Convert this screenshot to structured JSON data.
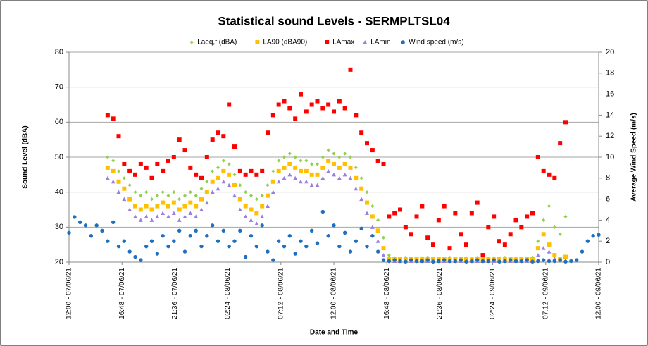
{
  "chart_data": {
    "type": "scatter",
    "title": "Statistical sound Levels - SERMPLTSL04",
    "x_label": "Date and Time",
    "y_label": "Sound Level (dBA)",
    "y2_label": "Average Wind Speed (m/s)",
    "xlim": [
      0,
      48
    ],
    "xticks": [
      {
        "value": 0,
        "label": "12:00 - 07/06/21"
      },
      {
        "value": 4.8,
        "label": "16:48 - 07/06/21"
      },
      {
        "value": 9.6,
        "label": "21:36 - 07/06/21"
      },
      {
        "value": 14.4,
        "label": "02:24 - 08/06/21"
      },
      {
        "value": 19.2,
        "label": "07:12 - 08/06/21"
      },
      {
        "value": 24,
        "label": "12:00 - 08/06/21"
      },
      {
        "value": 28.8,
        "label": "16:48 - 08/06/21"
      },
      {
        "value": 33.6,
        "label": "21:36 - 08/06/21"
      },
      {
        "value": 38.4,
        "label": "02:24 - 09/06/21"
      },
      {
        "value": 43.2,
        "label": "07:12 - 09/06/21"
      },
      {
        "value": 48,
        "label": "12:00 - 09/06/21"
      }
    ],
    "ylim": [
      20,
      80
    ],
    "yticks": [
      20,
      30,
      40,
      50,
      60,
      70,
      80
    ],
    "y2lim": [
      0,
      20
    ],
    "y2ticks": [
      0,
      2,
      4,
      6,
      8,
      10,
      12,
      14,
      16,
      18,
      20
    ],
    "grid": true,
    "legend": "top",
    "x": [
      0,
      0.5,
      1,
      1.5,
      2,
      2.5,
      3,
      3.5,
      4,
      4.5,
      5,
      5.5,
      6,
      6.5,
      7,
      7.5,
      8,
      8.5,
      9,
      9.5,
      10,
      10.5,
      11,
      11.5,
      12,
      12.5,
      13,
      13.5,
      14,
      14.5,
      15,
      15.5,
      16,
      16.5,
      17,
      17.5,
      18,
      18.5,
      19,
      19.5,
      20,
      20.5,
      21,
      21.5,
      22,
      22.5,
      23,
      23.5,
      24,
      24.5,
      25,
      25.5,
      26,
      26.5,
      27,
      27.5,
      28,
      28.5,
      29,
      29.5,
      30,
      30.5,
      31,
      31.5,
      32,
      32.5,
      33,
      33.5,
      34,
      34.5,
      35,
      35.5,
      36,
      36.5,
      37,
      37.5,
      38,
      38.5,
      39,
      39.5,
      40,
      40.5,
      41,
      41.5,
      42,
      42.5,
      43,
      43.5,
      44,
      44.5,
      45,
      45.5,
      46,
      46.5,
      47,
      47.5,
      48
    ],
    "series": [
      {
        "name": "Laeq,f (dBA)",
        "color": "#92d050",
        "marker": "diamond",
        "values": [
          null,
          null,
          null,
          null,
          null,
          null,
          null,
          50,
          49,
          46,
          44,
          42,
          40,
          39,
          40,
          38,
          39,
          40,
          39,
          40,
          38,
          39,
          40,
          39,
          41,
          43,
          46,
          47,
          49,
          48,
          45,
          42,
          40,
          39,
          38,
          39,
          42,
          46,
          49,
          50,
          51,
          50,
          49,
          49,
          48,
          48,
          50,
          52,
          51,
          50,
          51,
          50,
          47,
          44,
          40,
          36,
          32,
          27,
          22,
          21.2,
          21,
          21.3,
          21.1,
          21,
          21.2,
          21.4,
          21.1,
          21,
          21.2,
          21.3,
          21,
          21.1,
          21.2,
          21,
          21.3,
          21.1,
          21,
          21.2,
          21.1,
          21.3,
          21,
          21.2,
          21.1,
          21,
          21.4,
          26,
          32,
          36,
          30,
          28,
          33,
          null,
          null,
          null,
          null,
          null,
          null
        ]
      },
      {
        "name": "LA90  (dBA90)",
        "color": "#ffc000",
        "marker": "square",
        "values": [
          null,
          null,
          null,
          null,
          null,
          null,
          null,
          47,
          46,
          43,
          41,
          38,
          36,
          35,
          36,
          35,
          36,
          37,
          36,
          37,
          35,
          36,
          37,
          36,
          38,
          40,
          43,
          44,
          46,
          45,
          42,
          38,
          36,
          35,
          34,
          36,
          39,
          43,
          46,
          47,
          48,
          47,
          46,
          46,
          45,
          45,
          47,
          49,
          48,
          47,
          48,
          47,
          44,
          41,
          37,
          33,
          29,
          24,
          21,
          20.8,
          20.9,
          20.7,
          20.8,
          20.9,
          20.8,
          20.7,
          20.8,
          20.9,
          20.8,
          20.7,
          20.8,
          20.9,
          20.8,
          20.7,
          20.8,
          20.9,
          20.8,
          20.7,
          20.8,
          20.9,
          20.8,
          20.7,
          20.8,
          20.9,
          20.8,
          24,
          28,
          25,
          22,
          21,
          21.5,
          null,
          null,
          null,
          null,
          null,
          null
        ]
      },
      {
        "name": "LAmax",
        "color": "#ff0000",
        "marker": "square",
        "values": [
          null,
          null,
          null,
          null,
          null,
          null,
          null,
          62,
          61,
          56,
          48,
          46,
          45,
          48,
          47,
          44,
          48,
          46,
          49,
          50,
          55,
          52,
          47,
          45,
          44,
          50,
          55,
          57,
          56,
          65,
          53,
          46,
          45,
          46,
          45,
          46,
          57,
          62,
          65,
          66,
          64,
          61,
          68,
          63,
          65,
          66,
          64,
          65,
          63,
          66,
          64,
          75,
          62,
          57,
          54,
          52,
          49,
          48,
          33,
          34,
          35,
          30,
          28,
          33,
          36,
          27,
          25,
          32,
          36,
          24,
          34,
          28,
          25,
          34,
          37,
          22,
          30,
          33,
          26,
          25,
          28,
          32,
          30,
          33,
          34,
          50,
          46,
          45,
          44,
          54,
          60,
          null,
          null,
          null,
          null,
          null,
          null
        ]
      },
      {
        "name": "LAmin",
        "color": "#9b7fe0",
        "marker": "triangle",
        "values": [
          null,
          null,
          null,
          null,
          null,
          null,
          null,
          44,
          43,
          40,
          38,
          35,
          33,
          32,
          33,
          32,
          33,
          34,
          33,
          34,
          32,
          33,
          34,
          33,
          35,
          37,
          40,
          41,
          43,
          42,
          39,
          35,
          33,
          32,
          31,
          33,
          36,
          40,
          43,
          44,
          45,
          44,
          43,
          43,
          42,
          42,
          44,
          46,
          45,
          44,
          45,
          44,
          41,
          38,
          34,
          30,
          26,
          22,
          20.5,
          20.3,
          20.3,
          20.3,
          20.3,
          20.3,
          20.3,
          20.3,
          20.3,
          20.3,
          20.3,
          20.3,
          20.3,
          20.3,
          20.3,
          20.3,
          20.3,
          20.3,
          20.3,
          20.3,
          20.3,
          20.3,
          20.3,
          20.3,
          20.3,
          20.3,
          20.3,
          22,
          24,
          23,
          21,
          20.5,
          20.5,
          null,
          null,
          null,
          null,
          null,
          null
        ]
      },
      {
        "name": "Wind speed (m/s)",
        "color": "#1f6fbf",
        "marker": "circle",
        "axis": "y2",
        "values": [
          2.8,
          4.3,
          3.8,
          3.5,
          2.5,
          3.5,
          3,
          2,
          3.8,
          1.5,
          2,
          1,
          0.5,
          0.2,
          1.5,
          2,
          0.8,
          2.5,
          1.5,
          2,
          3,
          1,
          2.5,
          3,
          1.5,
          2.5,
          3.5,
          2,
          3,
          1.5,
          2,
          3,
          0.5,
          2.5,
          1.5,
          3.5,
          1,
          0.2,
          2,
          1.5,
          2.5,
          0.8,
          2,
          1.5,
          3,
          1.8,
          4.8,
          2.5,
          3.5,
          1.5,
          2.8,
          1,
          2,
          3.2,
          1.5,
          2.5,
          1,
          0.2,
          0.1,
          0.2,
          0.1,
          0.05,
          0.2,
          0.1,
          0.1,
          0.2,
          0.05,
          0.1,
          0.2,
          0.1,
          0.1,
          0.2,
          0.05,
          0.1,
          0.2,
          0.1,
          0.1,
          0.2,
          0.05,
          0.1,
          0.2,
          0.1,
          0.1,
          0.2,
          0.05,
          0.1,
          0.2,
          0.1,
          0.1,
          0.2,
          0.05,
          0.1,
          0.2,
          1,
          2,
          2.5,
          2.6
        ]
      }
    ]
  }
}
